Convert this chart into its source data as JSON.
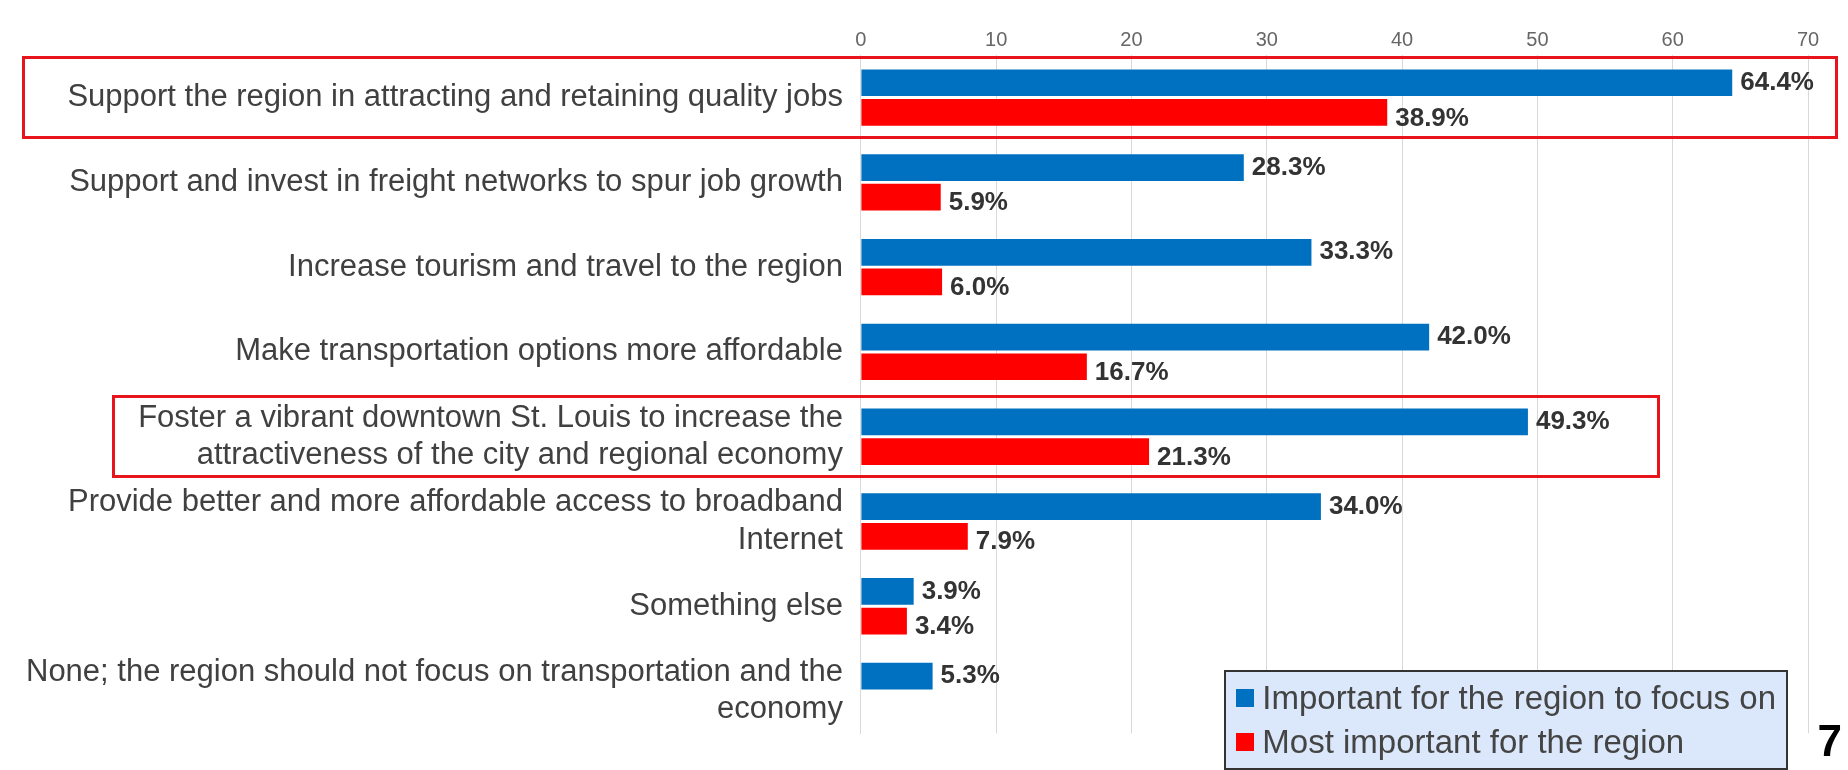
{
  "chart_data": {
    "type": "bar",
    "orientation": "horizontal",
    "categories": [
      "Support the region in attracting and retaining quality jobs",
      "Support and invest in freight networks to spur job growth",
      "Increase tourism and travel to the region",
      "Make transportation options more affordable",
      "Foster a vibrant downtown St. Louis to increase the attractiveness of the city and regional economy",
      "Provide better and more affordable access to broadband Internet",
      "Something else",
      "None; the region should not focus on transportation and the economy"
    ],
    "series": [
      {
        "name": "Important for the region to focus on",
        "color": "#0070c0",
        "values": [
          64.4,
          28.3,
          33.3,
          42.0,
          49.3,
          34.0,
          3.9,
          5.3
        ],
        "value_labels": [
          "64.4%",
          "28.3%",
          "33.3%",
          "42.0%",
          "49.3%",
          "34.0%",
          "3.9%",
          "5.3%"
        ]
      },
      {
        "name": "Most important for the region",
        "color": "#ff0000",
        "values": [
          38.9,
          5.9,
          6.0,
          16.7,
          21.3,
          7.9,
          3.4,
          null
        ],
        "value_labels": [
          "38.9%",
          "5.9%",
          "6.0%",
          "16.7%",
          "21.3%",
          "7.9%",
          "3.4%",
          null
        ]
      }
    ],
    "xlim": [
      0,
      70
    ],
    "xticks": [
      0,
      10,
      20,
      30,
      40,
      50,
      60,
      70
    ],
    "grid": "x",
    "legend": "bottom right",
    "annotations": [
      "7"
    ]
  }
}
